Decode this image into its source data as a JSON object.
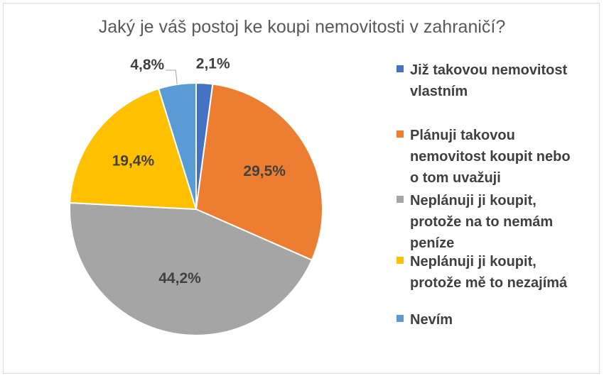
{
  "chart_data": {
    "type": "pie",
    "title": "Jaký je váš postoj ke koupi nemovitosti v zahraničí?",
    "legend_position": "right",
    "slices": [
      {
        "name": "Již takovou nemovitost vlastním",
        "value": 2.1,
        "label": "2,1%",
        "color": "#4472C4"
      },
      {
        "name": "Plánuji takovou nemovitost koupit nebo o tom uvažuji",
        "value": 29.5,
        "label": "29,5%",
        "color": "#ED7D31"
      },
      {
        "name": "Neplánuji ji koupit, protože na to nemám peníze",
        "value": 44.2,
        "label": "44,2%",
        "color": "#A5A5A5"
      },
      {
        "name": "Neplánuji ji koupit, protože mě to nezajímá",
        "value": 19.4,
        "label": "19,4%",
        "color": "#FFC000"
      },
      {
        "name": "Nevím",
        "value": 4.8,
        "label": "4,8%",
        "color": "#5B9BD5"
      }
    ]
  }
}
